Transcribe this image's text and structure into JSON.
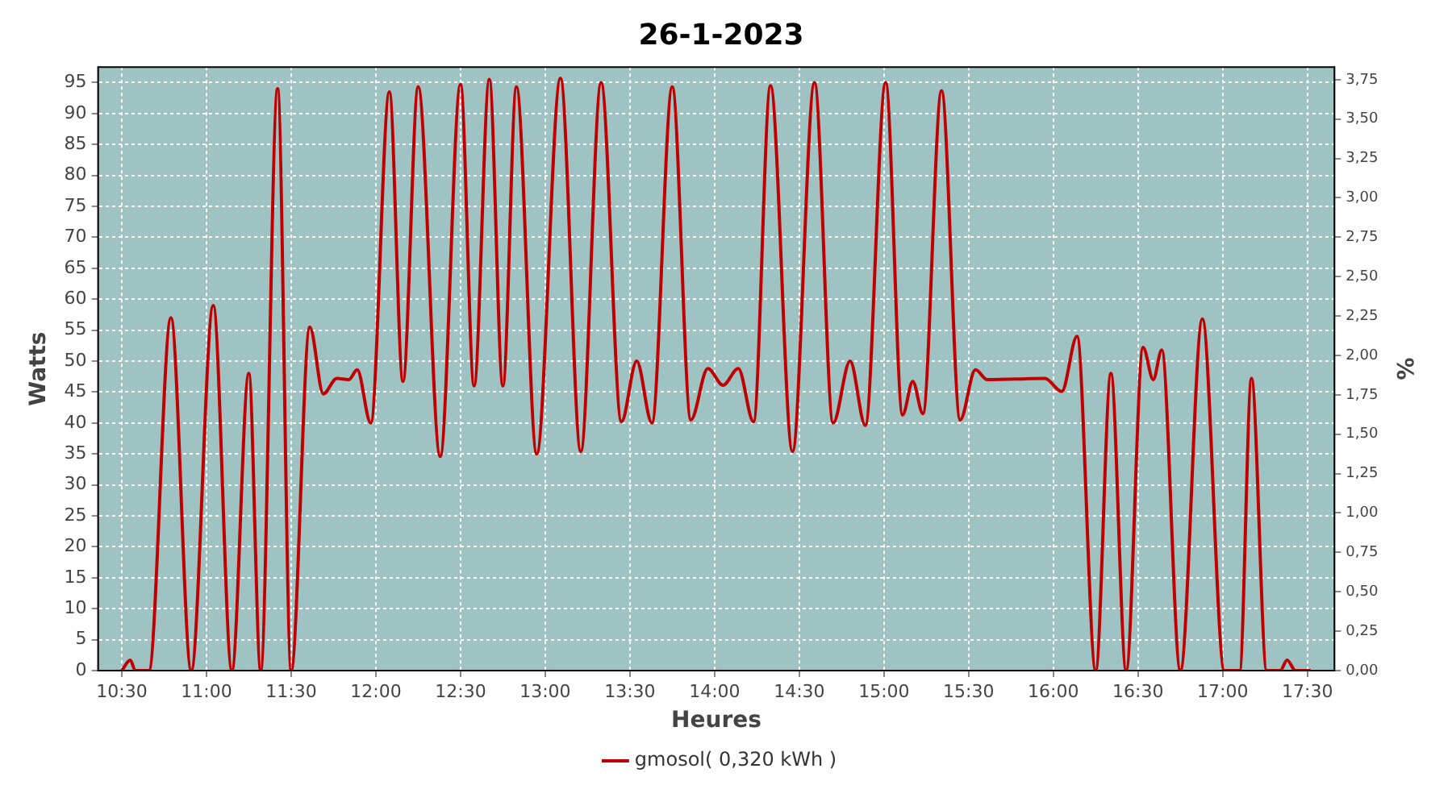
{
  "chart_data": {
    "type": "line",
    "title": "26-1-2023",
    "xlabel": "Heures",
    "ylabel": "Watts",
    "y2label": "%",
    "x": [
      10.5,
      10.55,
      10.58,
      10.66,
      10.79,
      10.91,
      11.04,
      11.15,
      11.25,
      11.32,
      11.42,
      11.5,
      11.61,
      11.69,
      11.77,
      11.84,
      11.89,
      11.97,
      12.08,
      12.16,
      12.25,
      12.38,
      12.5,
      12.58,
      12.67,
      12.75,
      12.83,
      12.95,
      13.09,
      13.21,
      13.33,
      13.45,
      13.54,
      13.63,
      13.75,
      13.86,
      13.96,
      14.05,
      14.14,
      14.23,
      14.33,
      14.46,
      14.59,
      14.7,
      14.8,
      14.89,
      15.01,
      15.11,
      15.17,
      15.23,
      15.34,
      15.45,
      15.54,
      15.61,
      15.95,
      16.05,
      16.14,
      16.25,
      16.34,
      16.43,
      16.53,
      16.59,
      16.64,
      16.75,
      16.88,
      17.01,
      17.1,
      17.17,
      17.26,
      17.34,
      17.38,
      17.43,
      17.52
    ],
    "series": [
      {
        "name": "gmosol( 0,320 kWh )",
        "color": "#c00000",
        "values": [
          0,
          1.7,
          0,
          0,
          57,
          0,
          59,
          0,
          48,
          0,
          94,
          0,
          55.5,
          44.7,
          47.2,
          47,
          48.6,
          40,
          93.5,
          46.7,
          94.3,
          34.6,
          94.7,
          46,
          95.5,
          46,
          94.3,
          35,
          95.7,
          35.4,
          95,
          40.2,
          50,
          40,
          94.3,
          40.5,
          48.8,
          46.1,
          48.8,
          40.2,
          94.5,
          35.4,
          95,
          40,
          50,
          39.6,
          95,
          41.3,
          46.7,
          41.5,
          93.7,
          40.5,
          48.6,
          47,
          47.2,
          45.1,
          54,
          0,
          48,
          0,
          52.2,
          47,
          51.8,
          0,
          56.8,
          0,
          0,
          47.2,
          0,
          0,
          1.7,
          0,
          0
        ]
      }
    ],
    "xlim": [
      10.36,
      17.66
    ],
    "ylim": [
      0,
      97.5
    ],
    "y2lim": [
      0,
      3.83
    ],
    "xticks": [
      {
        "value": 10.5,
        "label": "10:30"
      },
      {
        "value": 11,
        "label": "11:00"
      },
      {
        "value": 11.5,
        "label": "11:30"
      },
      {
        "value": 12,
        "label": "12:00"
      },
      {
        "value": 12.5,
        "label": "12:30"
      },
      {
        "value": 13,
        "label": "13:00"
      },
      {
        "value": 13.5,
        "label": "13:30"
      },
      {
        "value": 14,
        "label": "14:00"
      },
      {
        "value": 14.5,
        "label": "14:30"
      },
      {
        "value": 15,
        "label": "15:00"
      },
      {
        "value": 15.5,
        "label": "15:30"
      },
      {
        "value": 16,
        "label": "16:00"
      },
      {
        "value": 16.5,
        "label": "16:30"
      },
      {
        "value": 17,
        "label": "17:00"
      },
      {
        "value": 17.5,
        "label": "17:30"
      }
    ],
    "yticks": [
      0,
      5,
      10,
      15,
      20,
      25,
      30,
      35,
      40,
      45,
      50,
      55,
      60,
      65,
      70,
      75,
      80,
      85,
      90,
      95
    ],
    "y2ticks": [
      {
        "value": 0,
        "label": "0,00"
      },
      {
        "value": 0.25,
        "label": "0,25"
      },
      {
        "value": 0.5,
        "label": "0,50"
      },
      {
        "value": 0.75,
        "label": "0,75"
      },
      {
        "value": 1,
        "label": "1,00"
      },
      {
        "value": 1.25,
        "label": "1,25"
      },
      {
        "value": 1.5,
        "label": "1,50"
      },
      {
        "value": 1.75,
        "label": "1,75"
      },
      {
        "value": 2,
        "label": "2,00"
      },
      {
        "value": 2.25,
        "label": "2,25"
      },
      {
        "value": 2.5,
        "label": "2,50"
      },
      {
        "value": 2.75,
        "label": "2,75"
      },
      {
        "value": 3,
        "label": "3,00"
      },
      {
        "value": 3.25,
        "label": "3,25"
      },
      {
        "value": 3.5,
        "label": "3,50"
      },
      {
        "value": 3.75,
        "label": "3,75"
      }
    ],
    "grid": true,
    "legend": "bottom",
    "marker": "none",
    "line_style": "solid"
  }
}
